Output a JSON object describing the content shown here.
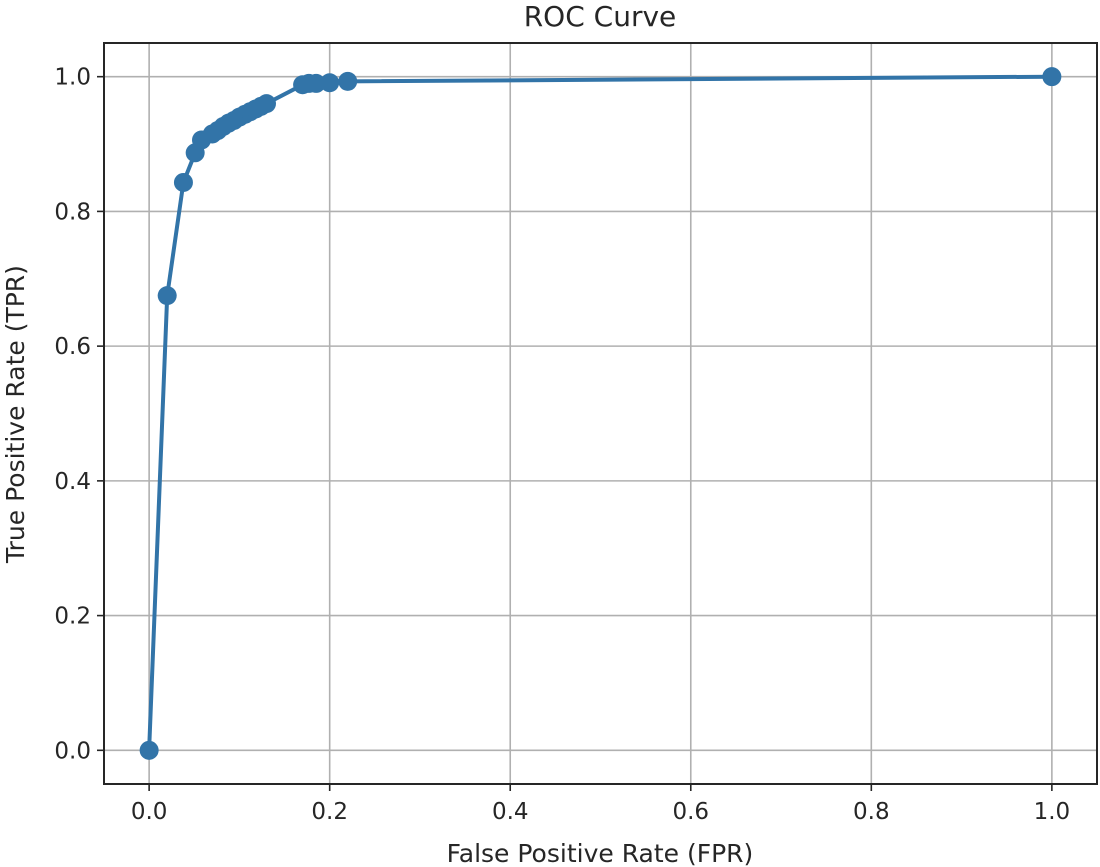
{
  "chart_data": {
    "type": "line",
    "title": "ROC Curve",
    "xlabel": "False Positive Rate (FPR)",
    "ylabel": "True Positive Rate (TPR)",
    "xlim": [
      -0.05,
      1.05
    ],
    "ylim": [
      -0.05,
      1.05
    ],
    "xticks": [
      0.0,
      0.2,
      0.4,
      0.6,
      0.8,
      1.0
    ],
    "yticks": [
      0.0,
      0.2,
      0.4,
      0.6,
      0.8,
      1.0
    ],
    "xtick_labels": [
      "0.0",
      "0.2",
      "0.4",
      "0.6",
      "0.8",
      "1.0"
    ],
    "ytick_labels": [
      "0.0",
      "0.2",
      "0.4",
      "0.6",
      "0.8",
      "1.0"
    ],
    "grid": true,
    "markers": true,
    "series": [
      {
        "color": "#3274a8",
        "x": [
          0.0,
          0.02,
          0.038,
          0.051,
          0.058,
          0.07,
          0.076,
          0.082,
          0.088,
          0.094,
          0.1,
          0.106,
          0.112,
          0.118,
          0.124,
          0.13,
          0.17,
          0.177,
          0.185,
          0.2,
          0.22,
          1.0
        ],
        "y": [
          0.0,
          0.675,
          0.843,
          0.887,
          0.906,
          0.915,
          0.92,
          0.926,
          0.931,
          0.935,
          0.94,
          0.944,
          0.948,
          0.952,
          0.956,
          0.96,
          0.988,
          0.99,
          0.99,
          0.991,
          0.993,
          1.0
        ]
      }
    ]
  }
}
